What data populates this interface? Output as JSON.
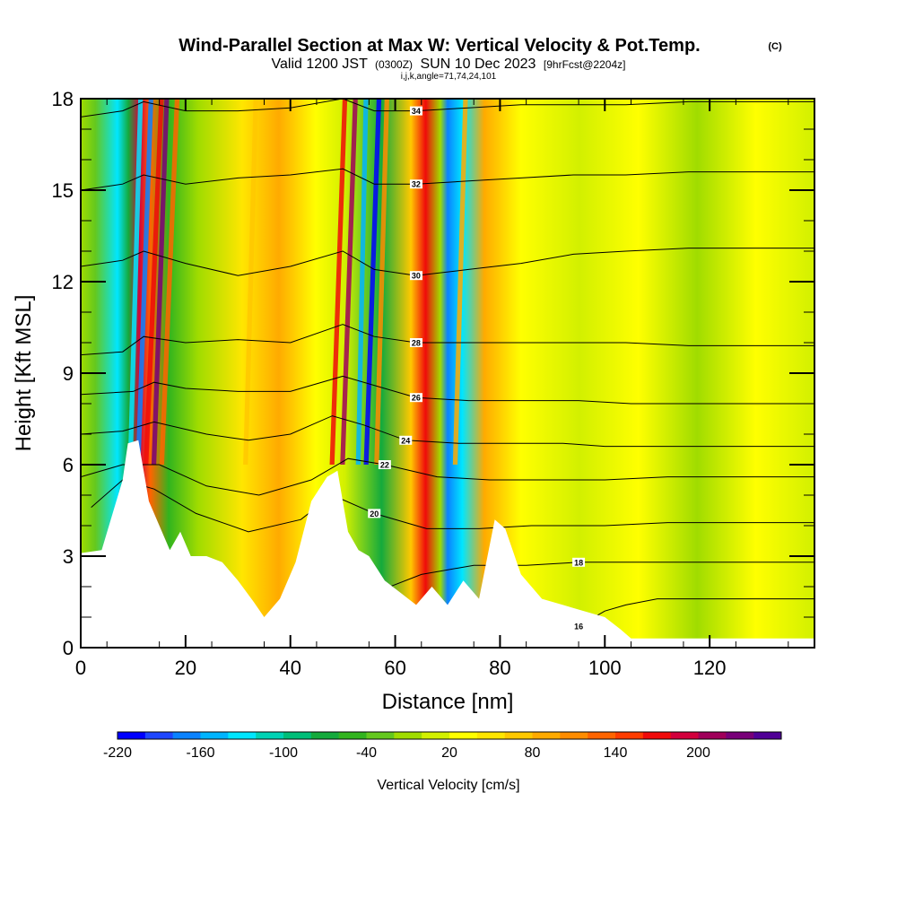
{
  "header": {
    "title": "Wind-Parallel Section at Max W: Vertical Velocity & Pot.Temp.",
    "title_mark": "(C)",
    "valid_prefix": "Valid 1200 JST",
    "valid_utc": "(0300Z)",
    "valid_date": "SUN 10 Dec 2023",
    "forecast": "[9hrFcst@2204z]",
    "indices": "i,j,k,angle=71,74,24,101"
  },
  "chart_data": {
    "type": "heatmap",
    "xlabel": "Distance [nm]",
    "ylabel": "Height [Kft MSL]",
    "xlim": [
      0,
      140
    ],
    "ylim": [
      0,
      18
    ],
    "x_ticks": [
      "0",
      "20",
      "40",
      "60",
      "80",
      "100",
      "120"
    ],
    "y_ticks": [
      "0",
      "3",
      "6",
      "9",
      "12",
      "15",
      "18"
    ],
    "terrain_kft": {
      "x": [
        0,
        4,
        8,
        9,
        11,
        13,
        15,
        17,
        19,
        21,
        24,
        27,
        30,
        33,
        35,
        38,
        41,
        44,
        47,
        49,
        51,
        53,
        55,
        58,
        61,
        64,
        67,
        70,
        73,
        76,
        79,
        81,
        84,
        88,
        92,
        96,
        100,
        103,
        105,
        110,
        120,
        130,
        140
      ],
      "y": [
        3.1,
        3.2,
        5.5,
        6.7,
        6.8,
        4.8,
        4.0,
        3.2,
        3.8,
        3.0,
        3.0,
        2.8,
        2.2,
        1.5,
        1.0,
        1.6,
        2.8,
        4.8,
        5.6,
        5.8,
        3.8,
        3.2,
        3.0,
        2.2,
        1.8,
        1.4,
        2.0,
        1.4,
        2.2,
        1.6,
        4.2,
        3.9,
        2.4,
        1.6,
        1.4,
        1.2,
        1.0,
        0.6,
        0.3,
        0.3,
        0.3,
        0.3,
        0.3
      ]
    },
    "theta_contours": [
      {
        "label": "16",
        "x": [
          0,
          20,
          40,
          60,
          80,
          95,
          100,
          104,
          110,
          120,
          140
        ],
        "y": [
          0,
          0,
          0,
          0,
          0.3,
          0.7,
          1.2,
          1.4,
          1.6,
          1.6,
          1.6
        ]
      },
      {
        "label": "18",
        "x": [
          56,
          65,
          75,
          85,
          95,
          100,
          110,
          120,
          140
        ],
        "y": [
          1.8,
          2.4,
          2.7,
          2.7,
          2.8,
          2.8,
          2.8,
          2.8,
          2.8
        ]
      },
      {
        "label": "20",
        "x": [
          2,
          8,
          14,
          22,
          32,
          42,
          48,
          56,
          66,
          76,
          86,
          100,
          112,
          124,
          140
        ],
        "y": [
          4.6,
          5.5,
          5.2,
          4.4,
          3.8,
          4.2,
          5.0,
          4.4,
          3.9,
          3.9,
          4.0,
          4.0,
          4.1,
          4.1,
          4.1
        ]
      },
      {
        "label": "22",
        "x": [
          0,
          8,
          15,
          24,
          34,
          44,
          51,
          58,
          68,
          78,
          90,
          100,
          112,
          124,
          140
        ],
        "y": [
          5.6,
          6.0,
          6.0,
          5.3,
          5.0,
          5.5,
          6.2,
          6.0,
          5.6,
          5.5,
          5.5,
          5.5,
          5.6,
          5.6,
          5.6
        ]
      },
      {
        "label": "24",
        "x": [
          0,
          8,
          14,
          24,
          32,
          40,
          48,
          54,
          62,
          72,
          82,
          92,
          100,
          112,
          124,
          140
        ],
        "y": [
          7.0,
          7.1,
          7.4,
          7.0,
          6.8,
          7.0,
          7.6,
          7.3,
          6.8,
          6.7,
          6.7,
          6.7,
          6.6,
          6.6,
          6.6,
          6.6
        ]
      },
      {
        "label": "26",
        "x": [
          0,
          10,
          14,
          20,
          30,
          40,
          50,
          56,
          64,
          74,
          84,
          95,
          105,
          115,
          125,
          140
        ],
        "y": [
          8.3,
          8.4,
          8.7,
          8.5,
          8.4,
          8.4,
          8.9,
          8.6,
          8.2,
          8.1,
          8.1,
          8.1,
          8.0,
          8.0,
          8.0,
          8.0
        ]
      },
      {
        "label": "28",
        "x": [
          0,
          8,
          12,
          20,
          30,
          40,
          50,
          56,
          64,
          74,
          84,
          94,
          104,
          116,
          128,
          140
        ],
        "y": [
          9.6,
          9.7,
          10.2,
          10.0,
          10.1,
          10.0,
          10.6,
          10.2,
          10.0,
          10.0,
          10.0,
          10.0,
          10.0,
          9.9,
          9.9,
          9.9
        ]
      },
      {
        "label": "30",
        "x": [
          0,
          8,
          12,
          20,
          30,
          40,
          50,
          56,
          64,
          74,
          84,
          94,
          104,
          116,
          128,
          140
        ],
        "y": [
          12.5,
          12.7,
          13.0,
          12.6,
          12.2,
          12.5,
          13.0,
          12.4,
          12.2,
          12.4,
          12.6,
          12.9,
          13.0,
          13.1,
          13.1,
          13.1
        ]
      },
      {
        "label": "32",
        "x": [
          0,
          8,
          12,
          20,
          30,
          40,
          50,
          56,
          64,
          74,
          84,
          94,
          104,
          116,
          128,
          140
        ],
        "y": [
          15.0,
          15.2,
          15.5,
          15.2,
          15.4,
          15.5,
          15.7,
          15.2,
          15.2,
          15.3,
          15.4,
          15.5,
          15.5,
          15.6,
          15.6,
          15.6
        ]
      },
      {
        "label": "34",
        "x": [
          0,
          8,
          12,
          20,
          30,
          40,
          50,
          56,
          64,
          74,
          84,
          94,
          104,
          116,
          128,
          140
        ],
        "y": [
          17.4,
          17.6,
          17.9,
          17.6,
          17.6,
          17.7,
          18.0,
          17.6,
          17.6,
          17.7,
          17.8,
          17.8,
          17.8,
          17.9,
          17.9,
          17.9
        ]
      }
    ],
    "colorbar": {
      "label": "Vertical Velocity [cm/s]",
      "tick_labels": [
        "-220",
        "-160",
        "-100",
        "-40",
        "20",
        "80",
        "140",
        "200"
      ],
      "colors": [
        "#0000ff",
        "#1e46ff",
        "#0a82ff",
        "#00b4ff",
        "#00e6ff",
        "#00d2b4",
        "#00be78",
        "#14aa3c",
        "#32b41e",
        "#64c81e",
        "#a0dc00",
        "#d2f000",
        "#ffff00",
        "#ffe600",
        "#ffc800",
        "#ffaa00",
        "#ff8c00",
        "#ff6400",
        "#ff3c00",
        "#f00a0a",
        "#d2003c",
        "#a0005a",
        "#780078",
        "#500096"
      ]
    }
  }
}
